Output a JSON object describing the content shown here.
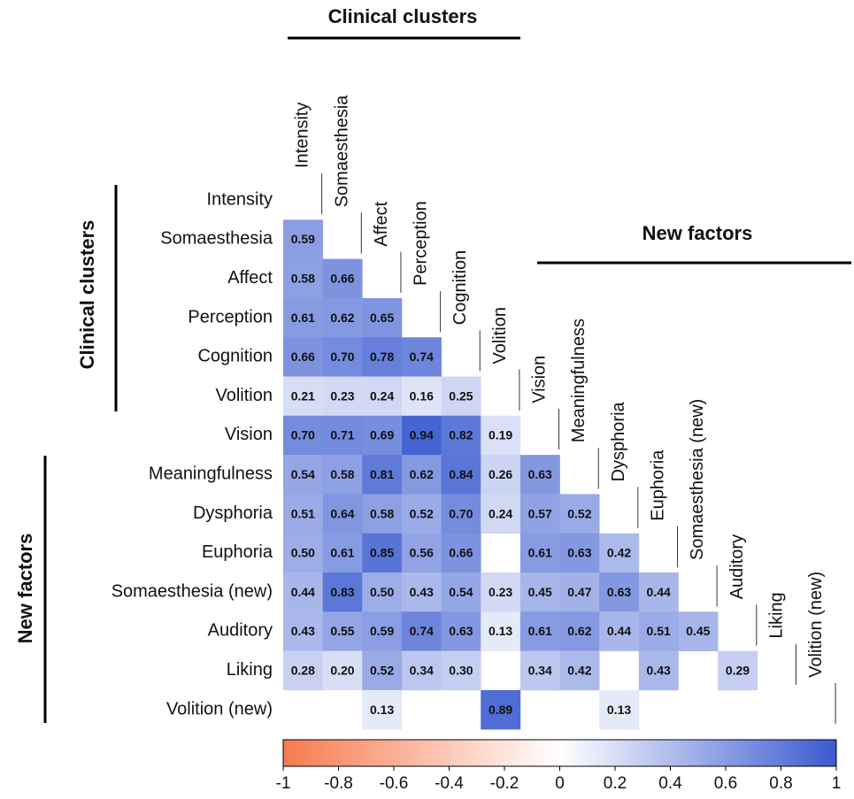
{
  "chart_data": {
    "type": "heatmap",
    "group_labels": [
      "Clinical clusters",
      "New factors"
    ],
    "labels": [
      "Intensity",
      "Somaesthesia",
      "Affect",
      "Perception",
      "Cognition",
      "Volition",
      "Vision",
      "Meaningfulness",
      "Dysphoria",
      "Euphoria",
      "Somaesthesia (new)",
      "Auditory",
      "Liking",
      "Volition (new)"
    ],
    "matrix": [
      [],
      [
        0.59
      ],
      [
        0.58,
        0.66
      ],
      [
        0.61,
        0.62,
        0.65
      ],
      [
        0.66,
        0.7,
        0.78,
        0.74
      ],
      [
        0.21,
        0.23,
        0.24,
        0.16,
        0.25
      ],
      [
        0.7,
        0.71,
        0.69,
        0.94,
        0.82,
        0.19
      ],
      [
        0.54,
        0.58,
        0.81,
        0.62,
        0.84,
        0.26,
        0.63
      ],
      [
        0.51,
        0.64,
        0.58,
        0.52,
        0.7,
        0.24,
        0.57,
        0.52
      ],
      [
        0.5,
        0.61,
        0.85,
        0.56,
        0.66,
        null,
        0.61,
        0.63,
        0.42
      ],
      [
        0.44,
        0.83,
        0.5,
        0.43,
        0.54,
        0.23,
        0.45,
        0.47,
        0.63,
        0.44
      ],
      [
        0.43,
        0.55,
        0.59,
        0.74,
        0.63,
        0.13,
        0.61,
        0.62,
        0.44,
        0.51,
        0.45
      ],
      [
        0.28,
        0.2,
        0.52,
        0.34,
        0.3,
        null,
        0.34,
        0.42,
        null,
        0.43,
        null,
        0.29
      ],
      [
        null,
        null,
        0.13,
        null,
        null,
        0.89,
        null,
        null,
        0.13,
        null,
        null,
        null,
        null
      ]
    ],
    "value_labels": [
      [],
      [
        "0.59"
      ],
      [
        "0.58",
        "0.66"
      ],
      [
        "0.61",
        "0.62",
        "0.65"
      ],
      [
        "0.66",
        "0.70",
        "0.78",
        "0.74"
      ],
      [
        "0.21",
        "0.23",
        "0.24",
        "0.16",
        "0.25"
      ],
      [
        "0.70",
        "0.71",
        "0.69",
        "0.94",
        "0.82",
        "0.19"
      ],
      [
        "0.54",
        "0.58",
        "0.81",
        "0.62",
        "0.84",
        "0.26",
        "0.63"
      ],
      [
        "0.51",
        "0.64",
        "0.58",
        "0.52",
        "0.70",
        "0.24",
        "0.57",
        "0.52"
      ],
      [
        "0.50",
        "0.61",
        "0.85",
        "0.56",
        "0.66",
        null,
        "0.61",
        "0.63",
        "0.42"
      ],
      [
        "0.44",
        "0.83",
        "0.50",
        "0.43",
        "0.54",
        "0.23",
        "0.45",
        "0.47",
        "0.63",
        "0.44"
      ],
      [
        "0.43",
        "0.55",
        "0.59",
        "0.74",
        "0.63",
        "0.13",
        "0.61",
        "0.62",
        "0.44",
        "0.51",
        "0.45"
      ],
      [
        "0.28",
        "0.20",
        "0.52",
        "0.34",
        "0.30",
        null,
        "0.34",
        "0.42",
        null,
        "0.43",
        null,
        "0.29"
      ],
      [
        null,
        null,
        "0.13",
        null,
        null,
        "0.89",
        null,
        null,
        "0.13",
        null,
        null,
        null,
        null
      ]
    ],
    "colorscale": [
      "#f87a50",
      "#ffffff",
      "#3a5bd0"
    ],
    "xlim": [
      -1,
      1
    ],
    "xticks": [
      -1,
      -0.8,
      -0.6,
      -0.4,
      -0.2,
      0,
      0.2,
      0.4,
      0.6,
      0.8,
      1
    ]
  }
}
